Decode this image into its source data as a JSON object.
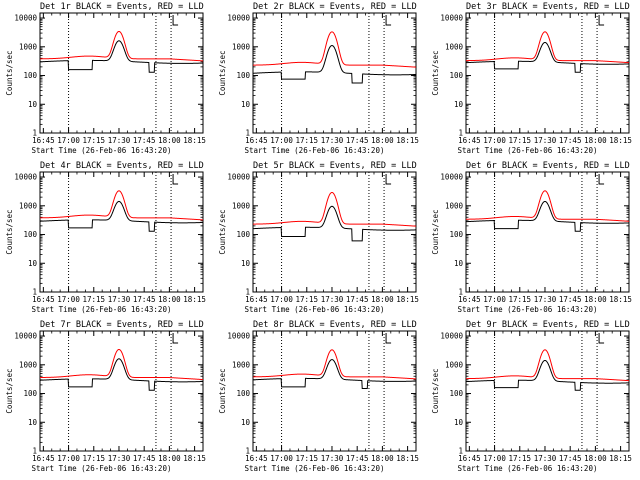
{
  "chart_data": [
    {
      "type": "line",
      "title": "Det 1r BLACK = Events, RED = LLD",
      "xlabel": "Start Time (26-Feb-06 16:43:20)",
      "ylabel": "Counts/sec",
      "x_ticks": [
        "16:45",
        "17:00",
        "17:15",
        "17:30",
        "17:45",
        "18:00",
        "18:15"
      ],
      "y_ticks": [
        "1",
        "10",
        "100",
        "1000",
        "10000"
      ],
      "ylim": [
        1,
        15000
      ],
      "yscale": "log",
      "series": [
        {
          "color": "#000000",
          "events_base": 300,
          "events_peak": 1600,
          "step_dips": [
            {
              "from": "17:00",
              "to": "17:14",
              "value": 160
            },
            {
              "from": "17:48",
              "to": "17:51",
              "value": 130
            }
          ]
        },
        {
          "color": "#ff0000",
          "lld_base": 380,
          "lld_peak": 3400
        }
      ]
    },
    {
      "type": "line",
      "title": "Det 2r BLACK = Events, RED = LLD",
      "xlabel": "Start Time (26-Feb-06 16:43:20)",
      "ylabel": "Counts/sec",
      "x_ticks": [
        "16:45",
        "17:00",
        "17:15",
        "17:30",
        "17:45",
        "18:00",
        "18:15"
      ],
      "y_ticks": [
        "1",
        "10",
        "100",
        "1000",
        "10000"
      ],
      "ylim": [
        1,
        15000
      ],
      "yscale": "log",
      "series": [
        {
          "color": "#000000",
          "events_base": 120,
          "events_peak": 1100,
          "step_dips": [
            {
              "from": "17:00",
              "to": "17:14",
              "value": 75
            },
            {
              "from": "17:42",
              "to": "17:48",
              "value": 55
            }
          ]
        },
        {
          "color": "#ff0000",
          "lld_base": 230,
          "lld_peak": 3300
        }
      ]
    },
    {
      "type": "line",
      "title": "Det 3r BLACK = Events, RED = LLD",
      "xlabel": "Start Time (26-Feb-06 16:43:20)",
      "ylabel": "Counts/sec",
      "x_ticks": [
        "16:45",
        "17:00",
        "17:15",
        "17:30",
        "17:45",
        "18:00",
        "18:15"
      ],
      "y_ticks": [
        "1",
        "10",
        "100",
        "1000",
        "10000"
      ],
      "ylim": [
        1,
        15000
      ],
      "yscale": "log",
      "series": [
        {
          "color": "#000000",
          "events_base": 280,
          "events_peak": 1400,
          "step_dips": [
            {
              "from": "17:00",
              "to": "17:14",
              "value": 170
            },
            {
              "from": "17:48",
              "to": "17:51",
              "value": 130
            }
          ]
        },
        {
          "color": "#ff0000",
          "lld_base": 330,
          "lld_peak": 3300
        }
      ]
    },
    {
      "type": "line",
      "title": "Det 4r BLACK = Events, RED = LLD",
      "xlabel": "Start Time (26-Feb-06 16:43:20)",
      "ylabel": "Counts/sec",
      "x_ticks": [
        "16:45",
        "17:00",
        "17:15",
        "17:30",
        "17:45",
        "18:00",
        "18:15"
      ],
      "y_ticks": [
        "1",
        "10",
        "100",
        "1000",
        "10000"
      ],
      "ylim": [
        1,
        15000
      ],
      "yscale": "log",
      "series": [
        {
          "color": "#000000",
          "events_base": 290,
          "events_peak": 1400,
          "step_dips": [
            {
              "from": "17:00",
              "to": "17:14",
              "value": 170
            },
            {
              "from": "17:48",
              "to": "17:51",
              "value": 130
            }
          ]
        },
        {
          "color": "#ff0000",
          "lld_base": 380,
          "lld_peak": 3300
        }
      ]
    },
    {
      "type": "line",
      "title": "Det 5r BLACK = Events, RED = LLD",
      "xlabel": "Start Time (26-Feb-06 16:43:20)",
      "ylabel": "Counts/sec",
      "x_ticks": [
        "16:45",
        "17:00",
        "17:15",
        "17:30",
        "17:45",
        "18:00",
        "18:15"
      ],
      "y_ticks": [
        "1",
        "10",
        "100",
        "1000",
        "10000"
      ],
      "ylim": [
        1,
        15000
      ],
      "yscale": "log",
      "series": [
        {
          "color": "#000000",
          "events_base": 160,
          "events_peak": 950,
          "step_dips": [
            {
              "from": "17:00",
              "to": "17:14",
              "value": 85
            },
            {
              "from": "17:42",
              "to": "17:48",
              "value": 60
            }
          ]
        },
        {
          "color": "#ff0000",
          "lld_base": 230,
          "lld_peak": 2900
        }
      ]
    },
    {
      "type": "line",
      "title": "Det 6r BLACK = Events, RED = LLD",
      "xlabel": "Start Time (26-Feb-06 16:43:20)",
      "ylabel": "Counts/sec",
      "x_ticks": [
        "16:45",
        "17:00",
        "17:15",
        "17:30",
        "17:45",
        "18:00",
        "18:15"
      ],
      "y_ticks": [
        "1",
        "10",
        "100",
        "1000",
        "10000"
      ],
      "ylim": [
        1,
        15000
      ],
      "yscale": "log",
      "series": [
        {
          "color": "#000000",
          "events_base": 280,
          "events_peak": 1400,
          "step_dips": [
            {
              "from": "17:00",
              "to": "17:14",
              "value": 160
            },
            {
              "from": "17:48",
              "to": "17:51",
              "value": 130
            }
          ]
        },
        {
          "color": "#ff0000",
          "lld_base": 340,
          "lld_peak": 3300
        }
      ]
    },
    {
      "type": "line",
      "title": "Det 7r BLACK = Events, RED = LLD",
      "xlabel": "Start Time (26-Feb-06 16:43:20)",
      "ylabel": "Counts/sec",
      "x_ticks": [
        "16:45",
        "17:00",
        "17:15",
        "17:30",
        "17:45",
        "18:00",
        "18:15"
      ],
      "y_ticks": [
        "1",
        "10",
        "100",
        "1000",
        "10000"
      ],
      "ylim": [
        1,
        15000
      ],
      "yscale": "log",
      "series": [
        {
          "color": "#000000",
          "events_base": 290,
          "events_peak": 1600,
          "step_dips": [
            {
              "from": "17:00",
              "to": "17:14",
              "value": 170
            },
            {
              "from": "17:48",
              "to": "17:51",
              "value": 130
            }
          ]
        },
        {
          "color": "#ff0000",
          "lld_base": 360,
          "lld_peak": 3400
        }
      ]
    },
    {
      "type": "line",
      "title": "Det 8r BLACK = Events, RED = LLD",
      "xlabel": "Start Time (26-Feb-06 16:43:20)",
      "ylabel": "Counts/sec",
      "x_ticks": [
        "16:45",
        "17:00",
        "17:15",
        "17:30",
        "17:45",
        "18:00",
        "18:15"
      ],
      "y_ticks": [
        "1",
        "10",
        "100",
        "1000",
        "10000"
      ],
      "ylim": [
        1,
        15000
      ],
      "yscale": "log",
      "series": [
        {
          "color": "#000000",
          "events_base": 300,
          "events_peak": 1500,
          "step_dips": [
            {
              "from": "17:00",
              "to": "17:14",
              "value": 170
            },
            {
              "from": "17:48",
              "to": "17:51",
              "value": 150
            }
          ]
        },
        {
          "color": "#ff0000",
          "lld_base": 380,
          "lld_peak": 3300
        }
      ]
    },
    {
      "type": "line",
      "title": "Det 9r BLACK = Events, RED = LLD",
      "xlabel": "Start Time (26-Feb-06 16:43:20)",
      "ylabel": "Counts/sec",
      "x_ticks": [
        "16:45",
        "17:00",
        "17:15",
        "17:30",
        "17:45",
        "18:00",
        "18:15"
      ],
      "y_ticks": [
        "1",
        "10",
        "100",
        "1000",
        "10000"
      ],
      "ylim": [
        1,
        15000
      ],
      "yscale": "log",
      "series": [
        {
          "color": "#000000",
          "events_base": 260,
          "events_peak": 1400,
          "step_dips": [
            {
              "from": "17:00",
              "to": "17:14",
              "value": 160
            },
            {
              "from": "17:48",
              "to": "17:51",
              "value": 130
            }
          ]
        },
        {
          "color": "#ff0000",
          "lld_base": 330,
          "lld_peak": 3300
        }
      ]
    }
  ]
}
